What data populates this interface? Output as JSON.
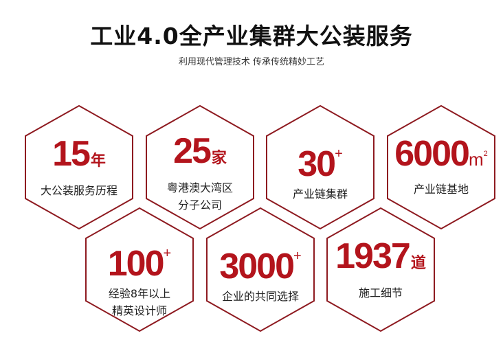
{
  "header": {
    "title": "工业4.0全产业集群大公装服务",
    "subtitle": "利用现代管理技术 传承传统精妙工艺"
  },
  "colors": {
    "accent": "#b3141c",
    "hex_border": "#8e1a20"
  },
  "stats": [
    {
      "number": "15",
      "unit": "年",
      "unit_style": "char",
      "label_lines": [
        "大公装服务历程"
      ]
    },
    {
      "number": "25",
      "unit": "家",
      "unit_style": "char",
      "label_lines": [
        "粤港澳大湾区",
        "分子公司"
      ]
    },
    {
      "number": "30",
      "unit": "+",
      "unit_style": "sup",
      "label_lines": [
        "产业链集群"
      ]
    },
    {
      "number": "6000",
      "unit": "m",
      "unit_sup": "2",
      "unit_style": "area",
      "label_lines": [
        "产业链基地"
      ]
    },
    {
      "number": "100",
      "unit": "+",
      "unit_style": "sup",
      "label_lines": [
        "经验8年以上",
        "精英设计师"
      ]
    },
    {
      "number": "3000",
      "unit": "+",
      "unit_style": "sup",
      "label_lines": [
        "企业的共同选择"
      ]
    },
    {
      "number": "1937",
      "unit": "道",
      "unit_style": "char",
      "label_lines": [
        "施工细节"
      ]
    }
  ]
}
